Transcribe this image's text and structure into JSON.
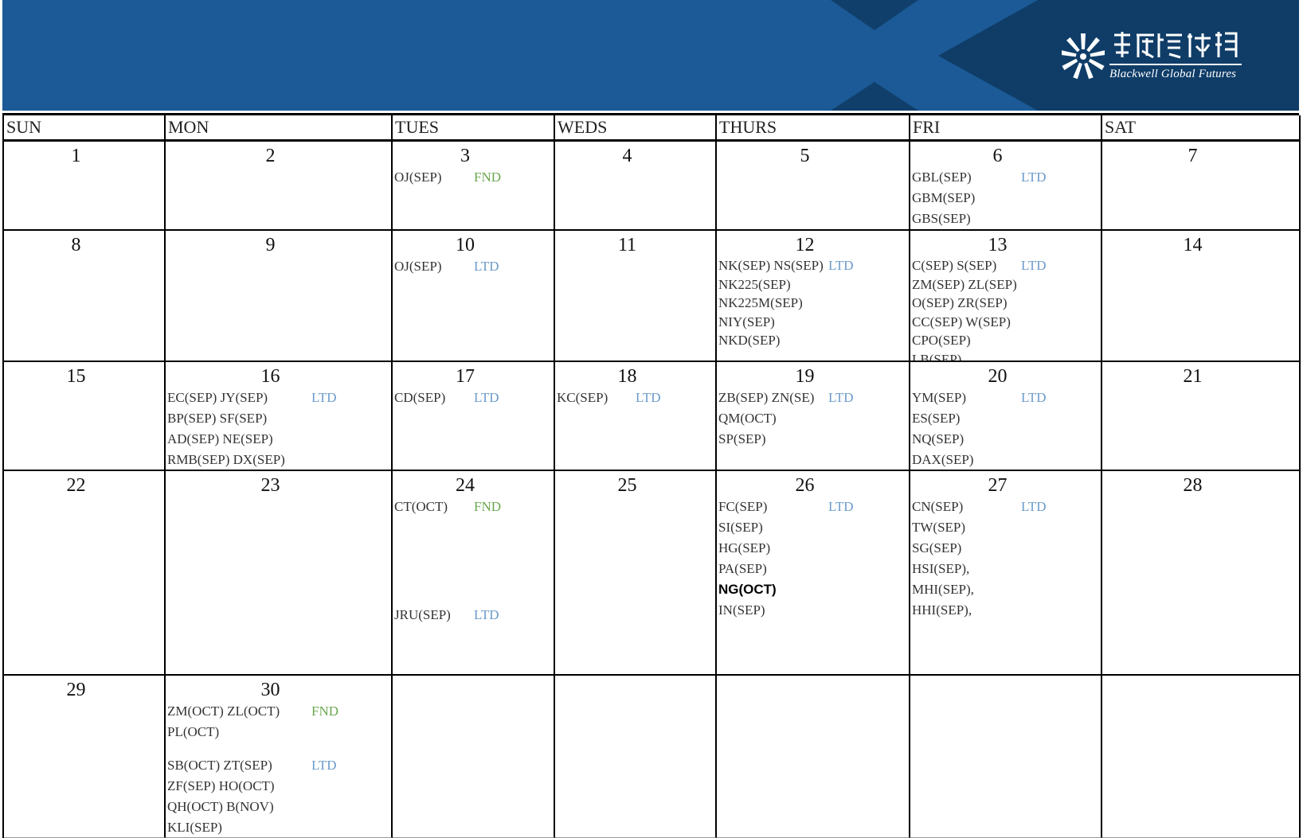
{
  "header": {
    "logo": {
      "name_cjk": "博威環球期貨",
      "name_en": "Blackwell Global Futures"
    },
    "colors": {
      "band_light": "#1b5a96",
      "band_dark": "#0f3d68"
    }
  },
  "colors": {
    "LTD": "#6b9bcb",
    "FND": "#6aa84f"
  },
  "weekdays": [
    "SUN",
    "MON",
    "TUES",
    "WEDS",
    "THURS",
    "FRI",
    "SAT"
  ],
  "weeks": [
    [
      {
        "day": "1",
        "groups": []
      },
      {
        "day": "2",
        "groups": []
      },
      {
        "day": "3",
        "groups": [
          [
            {
              "text": "OJ(SEP)",
              "tag": "FND"
            }
          ]
        ]
      },
      {
        "day": "4",
        "groups": []
      },
      {
        "day": "5",
        "groups": []
      },
      {
        "day": "6",
        "groups": [
          [
            {
              "text": "GBL(SEP)",
              "tag": "LTD"
            },
            {
              "text": "GBM(SEP)"
            },
            {
              "text": "GBS(SEP)"
            }
          ]
        ]
      },
      {
        "day": "7",
        "groups": []
      }
    ],
    [
      {
        "day": "8",
        "groups": []
      },
      {
        "day": "9",
        "groups": []
      },
      {
        "day": "10",
        "groups": [
          [
            {
              "text": "OJ(SEP)",
              "tag": "LTD"
            }
          ]
        ]
      },
      {
        "day": "11",
        "groups": []
      },
      {
        "day": "12",
        "dense": true,
        "groups": [
          [
            {
              "text": "NK(SEP) NS(SEP)",
              "tag": "LTD"
            },
            {
              "text": "NK225(SEP)"
            },
            {
              "text": "NK225M(SEP)"
            },
            {
              "text": "NIY(SEP)"
            },
            {
              "text": "NKD(SEP)"
            }
          ]
        ]
      },
      {
        "day": "13",
        "dense": true,
        "groups": [
          [
            {
              "text": "C(SEP) S(SEP)",
              "tag": "LTD"
            },
            {
              "text": "ZM(SEP) ZL(SEP)"
            },
            {
              "text": "O(SEP) ZR(SEP)"
            },
            {
              "text": "CC(SEP) W(SEP)"
            },
            {
              "text": "CPO(SEP)"
            },
            {
              "text": "LB(SEP)"
            }
          ]
        ]
      },
      {
        "day": "14",
        "groups": []
      }
    ],
    [
      {
        "day": "15",
        "groups": []
      },
      {
        "day": "16",
        "groups": [
          [
            {
              "text": "EC(SEP) JY(SEP)",
              "tag": "LTD"
            },
            {
              "text": "BP(SEP) SF(SEP)"
            },
            {
              "text": "AD(SEP) NE(SEP)"
            },
            {
              "text": "RMB(SEP) DX(SEP)"
            }
          ]
        ]
      },
      {
        "day": "17",
        "groups": [
          [
            {
              "text": "CD(SEP)",
              "tag": "LTD"
            }
          ]
        ]
      },
      {
        "day": "18",
        "groups": [
          [
            {
              "text": "KC(SEP)",
              "tag": "LTD"
            }
          ]
        ]
      },
      {
        "day": "19",
        "groups": [
          [
            {
              "text": "ZB(SEP) ZN(SE)",
              "tag": "LTD"
            },
            {
              "text": "QM(OCT)"
            },
            {
              "text": "SP(SEP)"
            }
          ]
        ]
      },
      {
        "day": "20",
        "groups": [
          [
            {
              "text": "YM(SEP)",
              "tag": "LTD"
            },
            {
              "text": "ES(SEP)"
            },
            {
              "text": "NQ(SEP)"
            },
            {
              "text": "DAX(SEP)"
            }
          ]
        ]
      },
      {
        "day": "21",
        "groups": []
      }
    ],
    [
      {
        "day": "22",
        "groups": []
      },
      {
        "day": "23",
        "groups": []
      },
      {
        "day": "24",
        "groups": [
          [
            {
              "text": "CT(OCT)",
              "tag": "FND"
            }
          ],
          [
            {
              "text": "JRU(SEP)",
              "tag": "LTD"
            }
          ]
        ],
        "far": true
      },
      {
        "day": "25",
        "groups": []
      },
      {
        "day": "26",
        "groups": [
          [
            {
              "text": "FC(SEP)",
              "tag": "LTD"
            },
            {
              "text": "SI(SEP)"
            },
            {
              "text": "HG(SEP)"
            },
            {
              "text": "PA(SEP)"
            },
            {
              "text": "NG(OCT)",
              "emphasis": true
            },
            {
              "text": "IN(SEP)"
            }
          ]
        ]
      },
      {
        "day": "27",
        "groups": [
          [
            {
              "text": "CN(SEP)",
              "tag": "LTD"
            },
            {
              "text": "TW(SEP)"
            },
            {
              "text": "SG(SEP)"
            },
            {
              "text": "HSI(SEP),"
            },
            {
              "text": "MHI(SEP),"
            },
            {
              "text": "HHI(SEP),"
            }
          ]
        ]
      },
      {
        "day": "28",
        "groups": []
      }
    ],
    [
      {
        "day": "29",
        "groups": []
      },
      {
        "day": "30",
        "groups": [
          [
            {
              "text": "ZM(OCT) ZL(OCT)",
              "tag": "FND"
            },
            {
              "text": "PL(OCT)"
            }
          ],
          [
            {
              "text": "SB(OCT) ZT(SEP)",
              "tag": "LTD"
            },
            {
              "text": "ZF(SEP) HO(OCT)"
            },
            {
              "text": "QH(OCT) B(NOV)"
            },
            {
              "text": "KLI(SEP)"
            }
          ]
        ]
      },
      {
        "day": "",
        "groups": []
      },
      {
        "day": "",
        "groups": []
      },
      {
        "day": "",
        "groups": []
      },
      {
        "day": "",
        "groups": []
      },
      {
        "day": "",
        "groups": []
      }
    ]
  ]
}
